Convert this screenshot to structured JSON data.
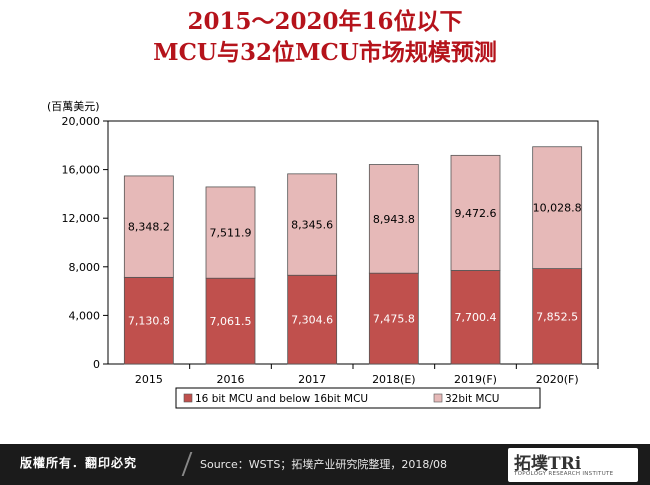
{
  "header": {
    "title_line1": "2015～2020年16位以下",
    "title_line2": "MCU与32位MCU市场规模预测"
  },
  "chart_data": {
    "type": "bar",
    "stacked": true,
    "ylabel": "(百萬美元)",
    "ylim": [
      0,
      20000
    ],
    "yticks": [
      "0",
      "4,000",
      "8,000",
      "12,000",
      "16,000",
      "20,000"
    ],
    "ytick_values": [
      0,
      4000,
      8000,
      12000,
      16000,
      20000
    ],
    "categories": [
      "2015",
      "2016",
      "2017",
      "2018(E)",
      "2019(F)",
      "2020(F)"
    ],
    "series": [
      {
        "name": "16 bit MCU and below 16bit MCU",
        "color": "#c0504d",
        "values": [
          7130.8,
          7061.5,
          7304.6,
          7475.8,
          7700.4,
          7852.5
        ],
        "labels": [
          "7,130.8",
          "7,061.5",
          "7,304.6",
          "7,475.8",
          "7,700.4",
          "7,852.5"
        ]
      },
      {
        "name": "32bit MCU",
        "color": "#e6b9b8",
        "values": [
          8348.2,
          7511.9,
          8345.6,
          8943.8,
          9472.6,
          10028.8
        ],
        "labels": [
          "8,348.2",
          "7,511.9",
          "8,345.6",
          "8,943.8",
          "9,472.6",
          "10,028.8"
        ]
      }
    ],
    "legend_position": "bottom",
    "grid": false
  },
  "footer": {
    "copyright": "版權所有．翻印必究",
    "source": "Source：WSTS；拓墣产业研究院整理，2018/08",
    "logo_main": "拓墣TRi",
    "logo_sub": "TOPOLOGY RESEARCH INSTITUTE"
  }
}
